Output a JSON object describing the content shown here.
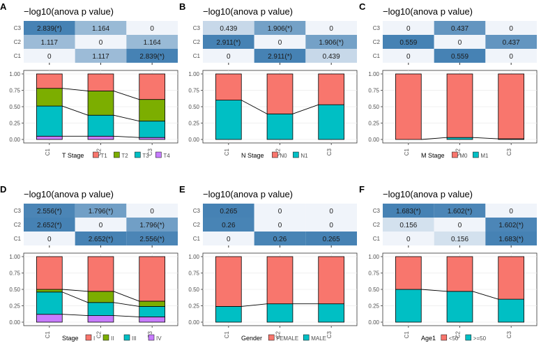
{
  "figure": {
    "heatmap_title": "−log10(anova p value)",
    "clusters": [
      "C1",
      "C2",
      "C3"
    ],
    "heat_rows": [
      "C3",
      "C2",
      "C1"
    ],
    "y_ticks": [
      "0.00",
      "0.25",
      "0.50",
      "0.75",
      "1.00"
    ],
    "colors": {
      "heat_high": "#4682b4",
      "heat_low": "#f0f4fa",
      "cell_text": "#1a1a1a",
      "panel_bg": "#ffffff",
      "grid": "#ebebeb",
      "axis_text": "#4d4d4d",
      "connector": "#000000"
    }
  },
  "chart_data": [
    {
      "panel": "A",
      "type": "bar",
      "stacked": true,
      "title": "−log10(anova p value)",
      "categories": [
        "C1",
        "C2",
        "C3"
      ],
      "ylim": [
        0,
        1
      ],
      "heatmap": {
        "rows": [
          "C3",
          "C2",
          "C1"
        ],
        "cols": [
          "C1",
          "C2",
          "C3"
        ],
        "values": [
          [
            2.839,
            1.164,
            0
          ],
          [
            1.117,
            0,
            1.164
          ],
          [
            0,
            1.117,
            2.839
          ]
        ],
        "labels": [
          [
            "2.839(*)",
            "1.164",
            "0"
          ],
          [
            "1.117",
            "0",
            "1.164"
          ],
          [
            "0",
            "1.117",
            "2.839(*)"
          ]
        ]
      },
      "legend_title": "T Stage",
      "series": [
        {
          "name": "T4",
          "color": "#c77cff",
          "values": [
            0.05,
            0.05,
            0.03
          ]
        },
        {
          "name": "T3",
          "color": "#00bfc4",
          "values": [
            0.46,
            0.32,
            0.25
          ]
        },
        {
          "name": "T2",
          "color": "#7cae00",
          "values": [
            0.27,
            0.37,
            0.33
          ]
        },
        {
          "name": "T1",
          "color": "#f8766d",
          "values": [
            0.22,
            0.26,
            0.39
          ]
        }
      ],
      "legend_order": [
        "T1",
        "T2",
        "T3",
        "T4"
      ]
    },
    {
      "panel": "B",
      "type": "bar",
      "stacked": true,
      "title": "−log10(anova p value)",
      "categories": [
        "C1",
        "C2",
        "C3"
      ],
      "ylim": [
        0,
        1
      ],
      "heatmap": {
        "rows": [
          "C3",
          "C2",
          "C1"
        ],
        "cols": [
          "C1",
          "C2",
          "C3"
        ],
        "values": [
          [
            0.439,
            1.906,
            0
          ],
          [
            2.911,
            0,
            1.906
          ],
          [
            0,
            2.911,
            0.439
          ]
        ],
        "labels": [
          [
            "0.439",
            "1.906(*)",
            "0"
          ],
          [
            "2.911(*)",
            "0",
            "1.906(*)"
          ],
          [
            "0",
            "2.911(*)",
            "0.439"
          ]
        ]
      },
      "legend_title": "N Stage",
      "series": [
        {
          "name": "N1",
          "color": "#00bfc4",
          "values": [
            0.6,
            0.39,
            0.53
          ]
        },
        {
          "name": "N0",
          "color": "#f8766d",
          "values": [
            0.4,
            0.61,
            0.47
          ]
        }
      ],
      "legend_order": [
        "N0",
        "N1"
      ]
    },
    {
      "panel": "C",
      "type": "bar",
      "stacked": true,
      "title": "−log10(anova p value)",
      "categories": [
        "C1",
        "C2",
        "C3"
      ],
      "ylim": [
        0,
        1
      ],
      "heatmap": {
        "rows": [
          "C3",
          "C2",
          "C1"
        ],
        "cols": [
          "C1",
          "C2",
          "C3"
        ],
        "values": [
          [
            0,
            0.437,
            0
          ],
          [
            0.559,
            0,
            0.437
          ],
          [
            0,
            0.559,
            0
          ]
        ],
        "labels": [
          [
            "0",
            "0.437",
            "0"
          ],
          [
            "0.559",
            "0",
            "0.437"
          ],
          [
            "0",
            "0.559",
            "0"
          ]
        ]
      },
      "legend_title": "M Stage",
      "series": [
        {
          "name": "M1",
          "color": "#00bfc4",
          "values": [
            0,
            0.03,
            0.01
          ]
        },
        {
          "name": "M0",
          "color": "#f8766d",
          "values": [
            1.0,
            0.97,
            0.99
          ]
        }
      ],
      "legend_order": [
        "M0",
        "M1"
      ]
    },
    {
      "panel": "D",
      "type": "bar",
      "stacked": true,
      "title": "−log10(anova p value)",
      "categories": [
        "C1",
        "C2",
        "C3"
      ],
      "ylim": [
        0,
        1
      ],
      "heatmap": {
        "rows": [
          "C3",
          "C2",
          "C1"
        ],
        "cols": [
          "C1",
          "C2",
          "C3"
        ],
        "values": [
          [
            2.556,
            1.796,
            0
          ],
          [
            2.652,
            0,
            1.796
          ],
          [
            0,
            2.652,
            2.556
          ]
        ],
        "labels": [
          [
            "2.556(*)",
            "1.796(*)",
            "0"
          ],
          [
            "2.652(*)",
            "0",
            "1.796(*)"
          ],
          [
            "0",
            "2.652(*)",
            "2.556(*)"
          ]
        ]
      },
      "legend_title": "Stage",
      "series": [
        {
          "name": "IV",
          "color": "#c77cff",
          "values": [
            0.12,
            0.1,
            0.08
          ]
        },
        {
          "name": "III",
          "color": "#00bfc4",
          "values": [
            0.34,
            0.2,
            0.16
          ]
        },
        {
          "name": "II",
          "color": "#7cae00",
          "values": [
            0.04,
            0.17,
            0.08
          ]
        },
        {
          "name": "I",
          "color": "#f8766d",
          "values": [
            0.5,
            0.53,
            0.68
          ]
        }
      ],
      "legend_order": [
        "I",
        "II",
        "III",
        "IV"
      ]
    },
    {
      "panel": "E",
      "type": "bar",
      "stacked": true,
      "title": "−log10(anova p value)",
      "categories": [
        "C1",
        "C2",
        "C3"
      ],
      "ylim": [
        0,
        1
      ],
      "heatmap": {
        "rows": [
          "C3",
          "C2",
          "C1"
        ],
        "cols": [
          "C1",
          "C2",
          "C3"
        ],
        "values": [
          [
            0.265,
            0,
            0
          ],
          [
            0.26,
            0,
            0
          ],
          [
            0,
            0.26,
            0.265
          ]
        ],
        "labels": [
          [
            "0.265",
            "0",
            "0"
          ],
          [
            "0.26",
            "0",
            "0"
          ],
          [
            "0",
            "0.26",
            "0.265"
          ]
        ]
      },
      "legend_title": "Gender",
      "series": [
        {
          "name": "MALE",
          "color": "#00bfc4",
          "values": [
            0.24,
            0.28,
            0.28
          ]
        },
        {
          "name": "FEMALE",
          "color": "#f8766d",
          "values": [
            0.76,
            0.72,
            0.72
          ]
        }
      ],
      "legend_order": [
        "FEMALE",
        "MALE"
      ]
    },
    {
      "panel": "F",
      "type": "bar",
      "stacked": true,
      "title": "−log10(anova p value)",
      "categories": [
        "C1",
        "C2",
        "C3"
      ],
      "ylim": [
        0,
        1
      ],
      "heatmap": {
        "rows": [
          "C3",
          "C2",
          "C1"
        ],
        "cols": [
          "C1",
          "C2",
          "C3"
        ],
        "values": [
          [
            1.683,
            1.602,
            0
          ],
          [
            0.156,
            0,
            1.602
          ],
          [
            0,
            0.156,
            1.683
          ]
        ],
        "labels": [
          [
            "1.683(*)",
            "1.602(*)",
            "0"
          ],
          [
            "0.156",
            "0",
            "1.602(*)"
          ],
          [
            "0",
            "0.156",
            "1.683(*)"
          ]
        ]
      },
      "legend_title": "Age1",
      "series": [
        {
          "name": ">=50",
          "color": "#00bfc4",
          "values": [
            0.5,
            0.47,
            0.35
          ]
        },
        {
          "name": "<50",
          "color": "#f8766d",
          "values": [
            0.5,
            0.53,
            0.65
          ]
        }
      ],
      "legend_order": [
        "<50",
        ">=50"
      ]
    }
  ]
}
